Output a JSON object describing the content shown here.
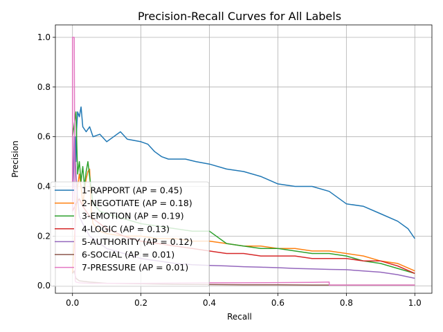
{
  "chart_data": {
    "type": "line",
    "title": "Precision-Recall Curves for All Labels",
    "xlabel": "Recall",
    "ylabel": "Precision",
    "xlim": [
      -0.05,
      1.05
    ],
    "ylim": [
      -0.03,
      1.05
    ],
    "xticks": [
      0.0,
      0.2,
      0.4,
      0.6,
      0.8,
      1.0
    ],
    "yticks": [
      0.0,
      0.2,
      0.4,
      0.6,
      0.8,
      1.0
    ],
    "xtick_labels": [
      "0.0",
      "0.2",
      "0.4",
      "0.6",
      "0.8",
      "1.0"
    ],
    "ytick_labels": [
      "0.0",
      "0.2",
      "0.4",
      "0.6",
      "0.8",
      "1.0"
    ],
    "grid": true,
    "legend_position": "lower-left",
    "series": [
      {
        "name": "1-RAPPORT (AP = 0.45)",
        "color": "#1f77b4",
        "x": [
          0.0,
          0.005,
          0.008,
          0.01,
          0.012,
          0.015,
          0.02,
          0.025,
          0.03,
          0.04,
          0.05,
          0.06,
          0.08,
          0.1,
          0.12,
          0.14,
          0.16,
          0.2,
          0.22,
          0.24,
          0.26,
          0.28,
          0.3,
          0.33,
          0.36,
          0.4,
          0.45,
          0.5,
          0.55,
          0.6,
          0.65,
          0.7,
          0.75,
          0.8,
          0.85,
          0.9,
          0.95,
          0.98,
          1.0
        ],
        "y": [
          0.33,
          0.55,
          0.6,
          0.5,
          0.63,
          0.7,
          0.68,
          0.72,
          0.64,
          0.62,
          0.64,
          0.6,
          0.61,
          0.58,
          0.6,
          0.62,
          0.59,
          0.58,
          0.57,
          0.54,
          0.52,
          0.51,
          0.51,
          0.51,
          0.5,
          0.49,
          0.47,
          0.46,
          0.44,
          0.41,
          0.4,
          0.4,
          0.38,
          0.33,
          0.32,
          0.29,
          0.26,
          0.23,
          0.19
        ]
      },
      {
        "name": "2-NEGOTIATE (AP = 0.18)",
        "color": "#ff7f0e",
        "x": [
          0.0,
          0.01,
          0.015,
          0.02,
          0.025,
          0.03,
          0.035,
          0.04,
          0.045,
          0.05,
          0.055,
          0.06,
          0.08,
          0.1,
          0.15,
          0.2,
          0.25,
          0.3,
          0.35,
          0.4,
          0.45,
          0.5,
          0.55,
          0.6,
          0.65,
          0.7,
          0.75,
          0.8,
          0.85,
          0.9,
          0.95,
          1.0
        ],
        "y": [
          0.05,
          0.3,
          0.4,
          0.45,
          0.4,
          0.33,
          0.38,
          0.43,
          0.46,
          0.47,
          0.3,
          0.25,
          0.22,
          0.21,
          0.2,
          0.2,
          0.19,
          0.19,
          0.18,
          0.18,
          0.17,
          0.16,
          0.16,
          0.15,
          0.15,
          0.14,
          0.14,
          0.13,
          0.12,
          0.1,
          0.09,
          0.06
        ]
      },
      {
        "name": "3-EMOTION (AP = 0.19)",
        "color": "#2ca02c",
        "x": [
          0.0,
          0.01,
          0.015,
          0.02,
          0.025,
          0.03,
          0.035,
          0.04,
          0.045,
          0.05,
          0.06,
          0.08,
          0.1,
          0.15,
          0.2,
          0.25,
          0.3,
          0.35,
          0.4,
          0.45,
          0.5,
          0.55,
          0.6,
          0.65,
          0.7,
          0.75,
          0.8,
          0.85,
          0.9,
          0.95,
          1.0
        ],
        "y": [
          0.6,
          0.7,
          0.45,
          0.5,
          0.42,
          0.48,
          0.4,
          0.46,
          0.5,
          0.44,
          0.33,
          0.3,
          0.29,
          0.27,
          0.25,
          0.24,
          0.23,
          0.22,
          0.22,
          0.17,
          0.16,
          0.15,
          0.15,
          0.14,
          0.13,
          0.13,
          0.12,
          0.1,
          0.09,
          0.07,
          0.05
        ]
      },
      {
        "name": "4-LOGIC (AP = 0.13)",
        "color": "#d62728",
        "x": [
          0.0,
          0.01,
          0.02,
          0.03,
          0.05,
          0.08,
          0.1,
          0.15,
          0.2,
          0.25,
          0.3,
          0.35,
          0.4,
          0.45,
          0.5,
          0.55,
          0.6,
          0.65,
          0.7,
          0.75,
          0.8,
          0.85,
          0.9,
          0.95,
          1.0
        ],
        "y": [
          0.3,
          0.33,
          0.35,
          0.32,
          0.28,
          0.25,
          0.23,
          0.2,
          0.18,
          0.17,
          0.16,
          0.15,
          0.14,
          0.13,
          0.13,
          0.12,
          0.12,
          0.12,
          0.11,
          0.11,
          0.11,
          0.1,
          0.1,
          0.08,
          0.05
        ]
      },
      {
        "name": "5-AUTHORITY (AP = 0.12)",
        "color": "#9467bd",
        "x": [
          0.0,
          0.005,
          0.01,
          0.015,
          0.02,
          0.03,
          0.05,
          0.08,
          0.1,
          0.15,
          0.2,
          0.25,
          0.3,
          0.35,
          0.4,
          0.45,
          0.5,
          0.55,
          0.6,
          0.65,
          0.7,
          0.75,
          0.8,
          0.85,
          0.9,
          0.95,
          1.0
        ],
        "y": [
          0.3,
          0.6,
          0.45,
          0.35,
          0.28,
          0.25,
          0.2,
          0.17,
          0.15,
          0.13,
          0.11,
          0.1,
          0.09,
          0.085,
          0.082,
          0.08,
          0.077,
          0.075,
          0.073,
          0.07,
          0.068,
          0.066,
          0.065,
          0.06,
          0.055,
          0.045,
          0.03
        ]
      },
      {
        "name": "6-SOCIAL (AP = 0.01)",
        "color": "#8c564b",
        "x": [
          0.0,
          0.005,
          0.01,
          0.02,
          0.05,
          0.1,
          0.2,
          0.3,
          0.4,
          0.5,
          0.6,
          0.7,
          0.8,
          0.9,
          1.0
        ],
        "y": [
          0.05,
          0.06,
          0.03,
          0.02,
          0.015,
          0.01,
          0.008,
          0.006,
          0.005,
          0.004,
          0.004,
          0.003,
          0.003,
          0.003,
          0.003
        ]
      },
      {
        "name": "7-PRESSURE (AP = 0.01)",
        "color": "#e377c2",
        "x": [
          0.0,
          0.0,
          0.005,
          0.008,
          0.01,
          0.02,
          0.05,
          0.1,
          0.2,
          0.3,
          0.4,
          0.5,
          0.6,
          0.7,
          0.75,
          0.75,
          0.8,
          0.9,
          1.0
        ],
        "y": [
          0.3,
          1.0,
          1.0,
          0.02,
          0.015,
          0.012,
          0.01,
          0.01,
          0.01,
          0.011,
          0.012,
          0.012,
          0.013,
          0.014,
          0.015,
          0.003,
          0.003,
          0.003,
          0.003
        ]
      }
    ]
  }
}
